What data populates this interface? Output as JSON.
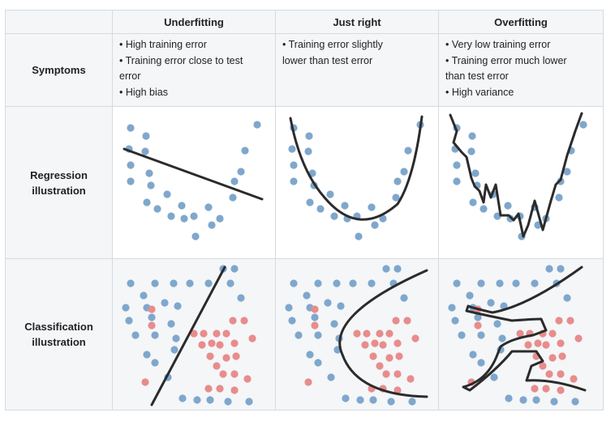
{
  "columns": [
    "Underfitting",
    "Just right",
    "Overfitting"
  ],
  "rows": {
    "symptoms": "Symptoms",
    "regression": "Regression illustration",
    "classification": "Classification illustration"
  },
  "symptoms": {
    "underfitting": [
      "• High training error",
      "• Training error close to test",
      "error",
      "• High bias"
    ],
    "just_right": [
      "• Training error slightly",
      "lower than test error"
    ],
    "overfitting": [
      "• Very low training error",
      "• Training error much lower",
      "than test error",
      "• High variance"
    ]
  },
  "colors": {
    "blue_point": "#7fa7cc",
    "red_point": "#e88c8c",
    "line": "#2b2b2b",
    "header_bg": "#f4f6f8",
    "border": "#d6dbe0"
  }
}
